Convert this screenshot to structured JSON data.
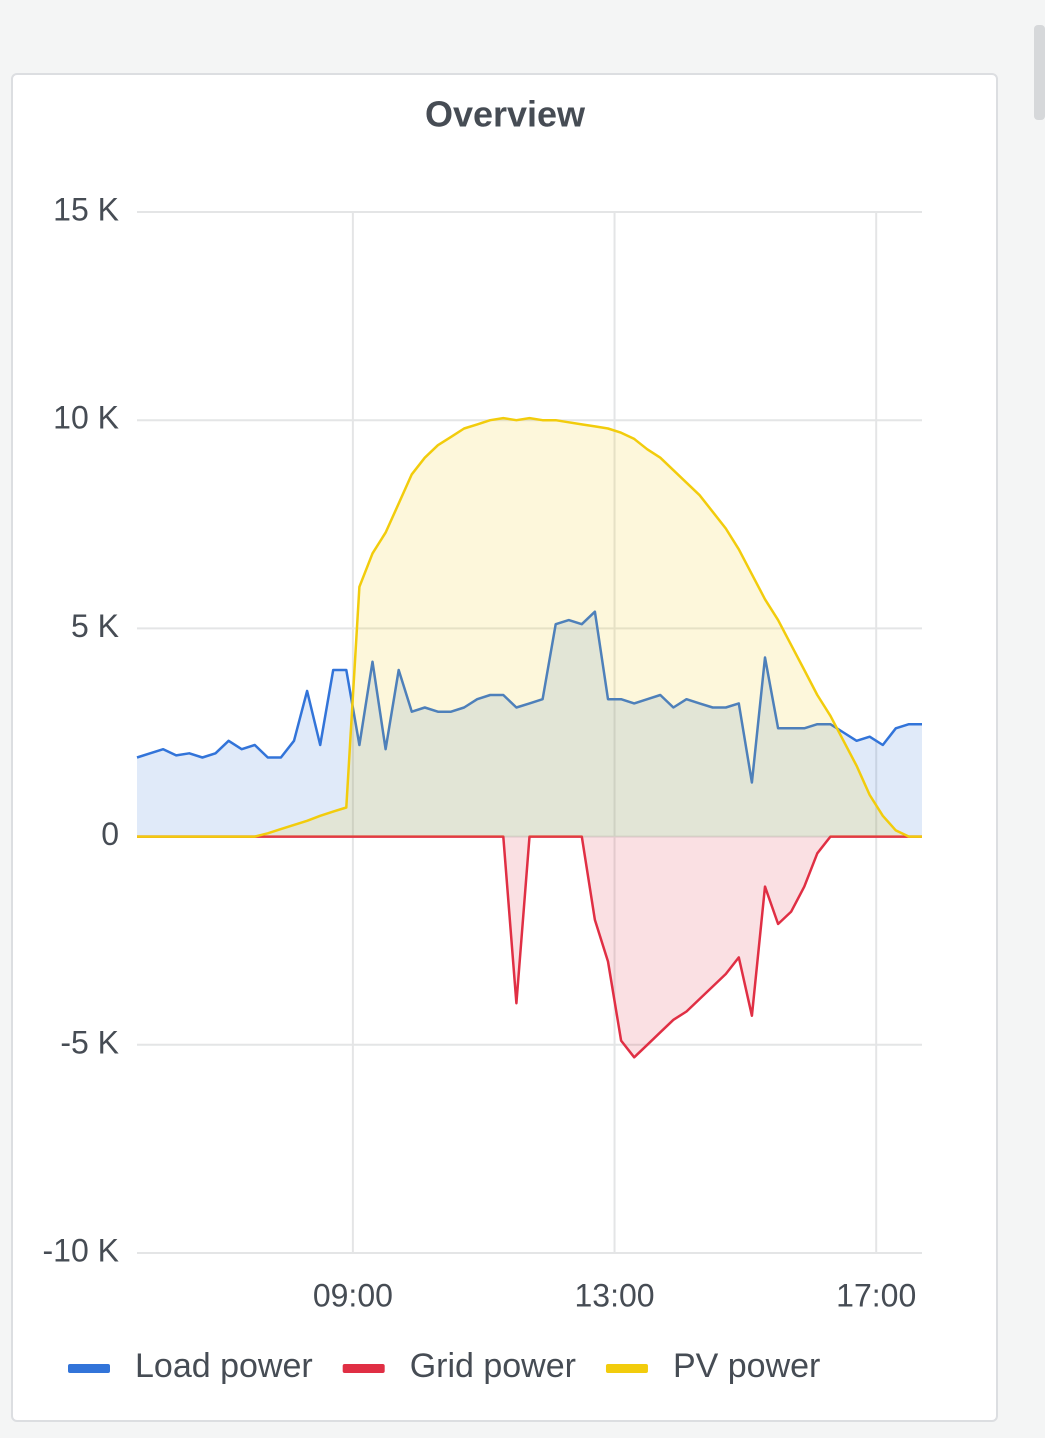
{
  "chart_data": {
    "type": "line",
    "title": "Overview",
    "x": [
      5.7,
      5.9,
      6.1,
      6.3,
      6.5,
      6.7,
      6.9,
      7.1,
      7.3,
      7.5,
      7.7,
      7.9,
      8.1,
      8.3,
      8.5,
      8.7,
      8.9,
      9.1,
      9.3,
      9.5,
      9.7,
      9.9,
      10.1,
      10.3,
      10.5,
      10.7,
      10.9,
      11.1,
      11.3,
      11.5,
      11.7,
      11.9,
      12.1,
      12.3,
      12.5,
      12.7,
      12.9,
      13.1,
      13.3,
      13.5,
      13.7,
      13.9,
      14.1,
      14.3,
      14.5,
      14.7,
      14.9,
      15.1,
      15.3,
      15.5,
      15.7,
      15.9,
      16.1,
      16.3,
      16.5,
      16.7,
      16.9,
      17.1,
      17.3,
      17.5,
      17.7
    ],
    "series": [
      {
        "name": "Load power",
        "color": "#3274d9",
        "values": [
          1900,
          2000,
          2100,
          1950,
          2000,
          1900,
          2000,
          2300,
          2100,
          2200,
          1900,
          1900,
          2300,
          3500,
          2200,
          4000,
          4000,
          2200,
          4200,
          2100,
          4000,
          3000,
          3100,
          3000,
          3000,
          3100,
          3300,
          3400,
          3400,
          3100,
          3200,
          3300,
          5100,
          5200,
          5100,
          5400,
          3300,
          3300,
          3200,
          3300,
          3400,
          3100,
          3300,
          3200,
          3100,
          3100,
          3200,
          1300,
          4300,
          2600,
          2600,
          2600,
          2700,
          2700,
          2500,
          2300,
          2400,
          2200,
          2600,
          2700,
          2700
        ]
      },
      {
        "name": "Grid power",
        "color": "#e02f44",
        "values": [
          0,
          0,
          0,
          0,
          0,
          0,
          0,
          0,
          0,
          0,
          0,
          0,
          0,
          0,
          0,
          0,
          0,
          0,
          0,
          0,
          0,
          0,
          0,
          0,
          0,
          0,
          0,
          0,
          0,
          -4000,
          0,
          0,
          0,
          0,
          0,
          -2000,
          -3000,
          -4900,
          -5300,
          -5000,
          -4700,
          -4400,
          -4200,
          -3900,
          -3600,
          -3300,
          -2900,
          -4300,
          -1200,
          -2100,
          -1800,
          -1200,
          -400,
          0,
          0,
          0,
          0,
          0,
          0,
          0,
          0
        ]
      },
      {
        "name": "PV power",
        "color": "#f2cc0c",
        "values": [
          0,
          0,
          0,
          0,
          0,
          0,
          0,
          0,
          0,
          0,
          80,
          180,
          280,
          380,
          500,
          600,
          700,
          6000,
          6800,
          7300,
          8000,
          8700,
          9100,
          9400,
          9600,
          9800,
          9900,
          10000,
          10050,
          10000,
          10050,
          10000,
          10000,
          9950,
          9900,
          9850,
          9800,
          9700,
          9550,
          9300,
          9100,
          8800,
          8500,
          8200,
          7800,
          7400,
          6900,
          6300,
          5700,
          5200,
          4600,
          4000,
          3400,
          2900,
          2300,
          1700,
          1000,
          500,
          150,
          0,
          0
        ]
      }
    ],
    "xlim": [
      5.7,
      17.7
    ],
    "xticks": [
      {
        "value": 9,
        "label": "09:00"
      },
      {
        "value": 13,
        "label": "13:00"
      },
      {
        "value": 17,
        "label": "17:00"
      }
    ],
    "ylim": [
      -10000,
      15000
    ],
    "yticks": [
      {
        "value": -10000,
        "label": "-10 K"
      },
      {
        "value": -5000,
        "label": "-5 K"
      },
      0,
      {
        "value": 5000,
        "label": "5 K"
      },
      {
        "value": 10000,
        "label": "10 K"
      },
      {
        "value": 15000,
        "label": "15 K"
      }
    ],
    "grid": true,
    "fill_area": true,
    "legend": "bottom"
  }
}
